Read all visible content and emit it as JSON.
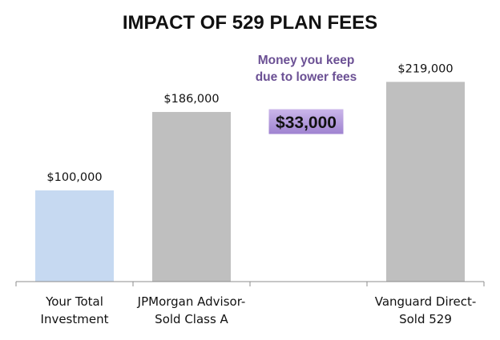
{
  "chart_data": {
    "type": "bar",
    "title": "IMPACT OF 529 PLAN FEES",
    "categories": [
      [
        "Your Total",
        "Investment"
      ],
      [
        "JPMorgan Advisor-",
        "Sold Class A"
      ],
      [
        "",
        ""
      ],
      [
        "Vanguard Direct-",
        "Sold 529"
      ]
    ],
    "values": [
      100000,
      186000,
      null,
      219000
    ],
    "value_labels": [
      "$100,000",
      "$186,000",
      "",
      "$219,000"
    ],
    "bar_colors": [
      "#c6d9f1",
      "#bfbfbf",
      "",
      "#bfbfbf"
    ],
    "ylim": [
      0,
      250000
    ],
    "grid": false,
    "annotation": {
      "lines": [
        "Money you keep",
        "due to lower fees"
      ],
      "badge": "$33,000",
      "text_color": "#6b5094",
      "badge_gradient": [
        "#cbb7ea",
        "#9f82d0"
      ]
    }
  }
}
